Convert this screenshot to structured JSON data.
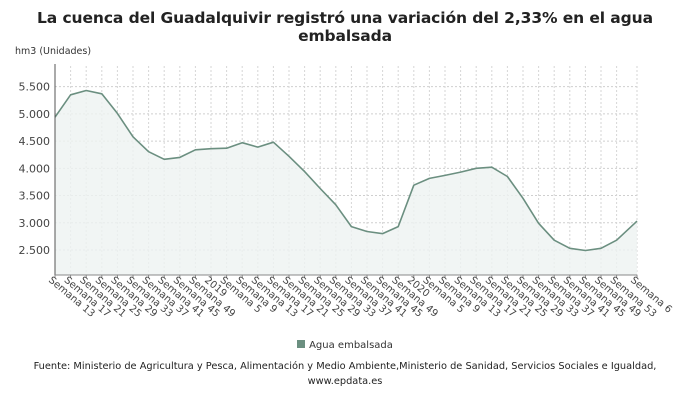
{
  "chart_data": {
    "type": "area",
    "title": "La cuenca del Guadalquivir registró una variación del 2,33% en el agua embalsada",
    "ylabel": "hm3 (Unidades)",
    "xlabel": "",
    "ylim": [
      2040,
      5880
    ],
    "yticks": [
      "2.500",
      "3.000",
      "3.500",
      "4.000",
      "4.500",
      "5.000",
      "5.500"
    ],
    "ytick_values": [
      2500,
      3000,
      3500,
      4000,
      4500,
      5000,
      5500
    ],
    "grid": true,
    "legend_position": "bottom",
    "line_color": "#6b8f80",
    "fill_color": "#eef3f1",
    "categories": [
      "Semana 13",
      "Semana 17",
      "Semana 21",
      "Semana 25",
      "Semana 29",
      "Semana 33",
      "Semana 37",
      "Semana 41",
      "Semana 45",
      "Semana 49",
      "2019",
      "Semana 5",
      "Semana 9",
      "Semana 13",
      "Semana 17",
      "Semana 21",
      "Semana 25",
      "Semana 29",
      "Semana 33",
      "Semana 37",
      "Semana 41",
      "Semana 45",
      "Semana 49",
      "2020",
      "Semana 5",
      "Semana 9",
      "Semana 13",
      "Semana 17",
      "Semana 21",
      "Semana 25",
      "Semana 29",
      "Semana 33",
      "Semana 37",
      "Semana 41",
      "Semana 45",
      "Semana 49",
      "Semana 53",
      "Semana 6"
    ],
    "series": [
      {
        "name": "Agua embalsada",
        "values": [
          4940,
          5350,
          5430,
          5370,
          5010,
          4580,
          4305,
          4165,
          4200,
          4340,
          4360,
          4370,
          4470,
          4390,
          4480,
          4220,
          3940,
          3630,
          3330,
          2930,
          2840,
          2800,
          2930,
          3690,
          3815,
          3870,
          3930,
          4000,
          4020,
          3850,
          3450,
          2990,
          2680,
          2530,
          2490,
          2530,
          2680,
          3030
        ]
      }
    ]
  },
  "legend": {
    "label": "Agua embalsada"
  },
  "source": {
    "line1": "Fuente: Ministerio de Agricultura y Pesca, Alimentación y Medio Ambiente,Ministerio de Sanidad, Servicios Sociales e Igualdad,",
    "line2": "www.epdata.es"
  }
}
